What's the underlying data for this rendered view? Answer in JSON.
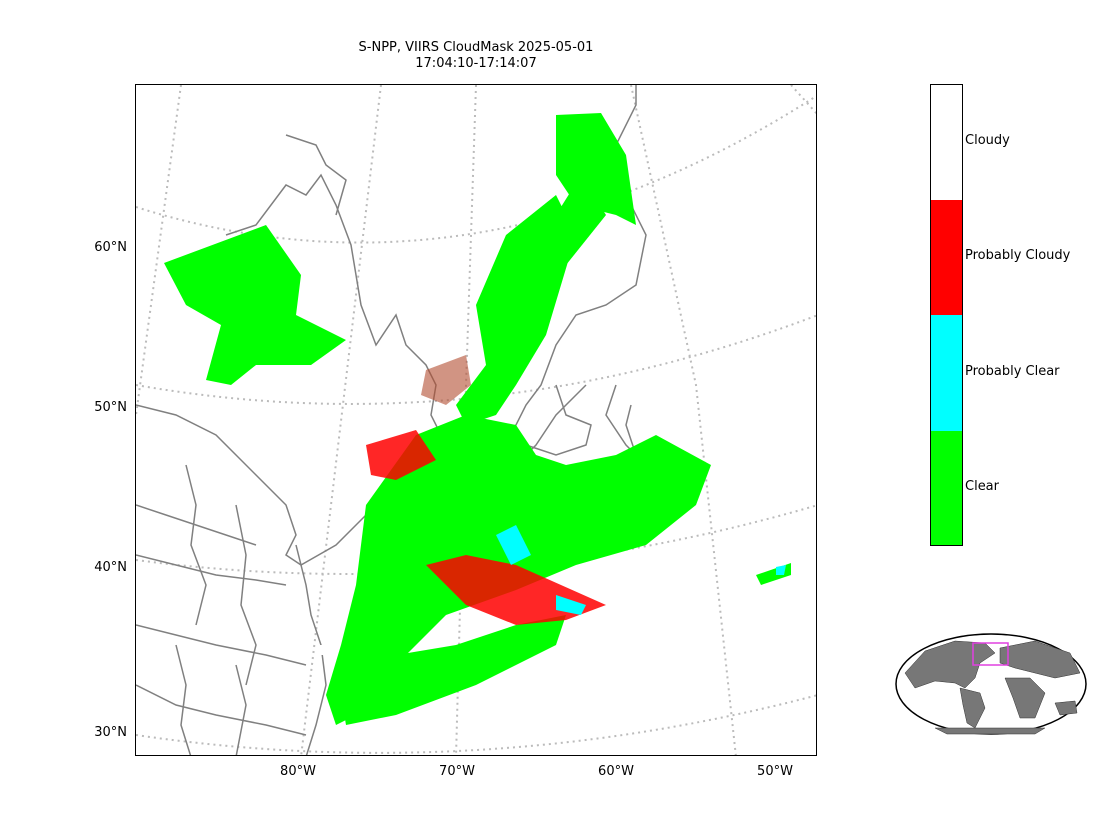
{
  "title": {
    "line1": "S-NPP, VIIRS CloudMask 2025-05-01",
    "line2": "17:04:10-17:14:07"
  },
  "axes": {
    "lat_labels": [
      "60°N",
      "50°N",
      "40°N",
      "30°N"
    ],
    "lon_labels": [
      "80°W",
      "70°W",
      "60°W",
      "50°W"
    ]
  },
  "legend": {
    "classes": [
      {
        "label": "Cloudy",
        "color": "#ffffff"
      },
      {
        "label": "Probably Cloudy",
        "color": "#ff0000"
      },
      {
        "label": "Probably Clear",
        "color": "#00ffff"
      },
      {
        "label": "Clear",
        "color": "#00ff00"
      }
    ]
  },
  "colors": {
    "clear": "#00ff00",
    "probably_cloudy": "#ff0000",
    "probably_clear": "#00ffff",
    "coastline": "#808080",
    "graticule": "#bbbbbb",
    "land_inset": "#777777",
    "inset_box": "#e040e0"
  }
}
